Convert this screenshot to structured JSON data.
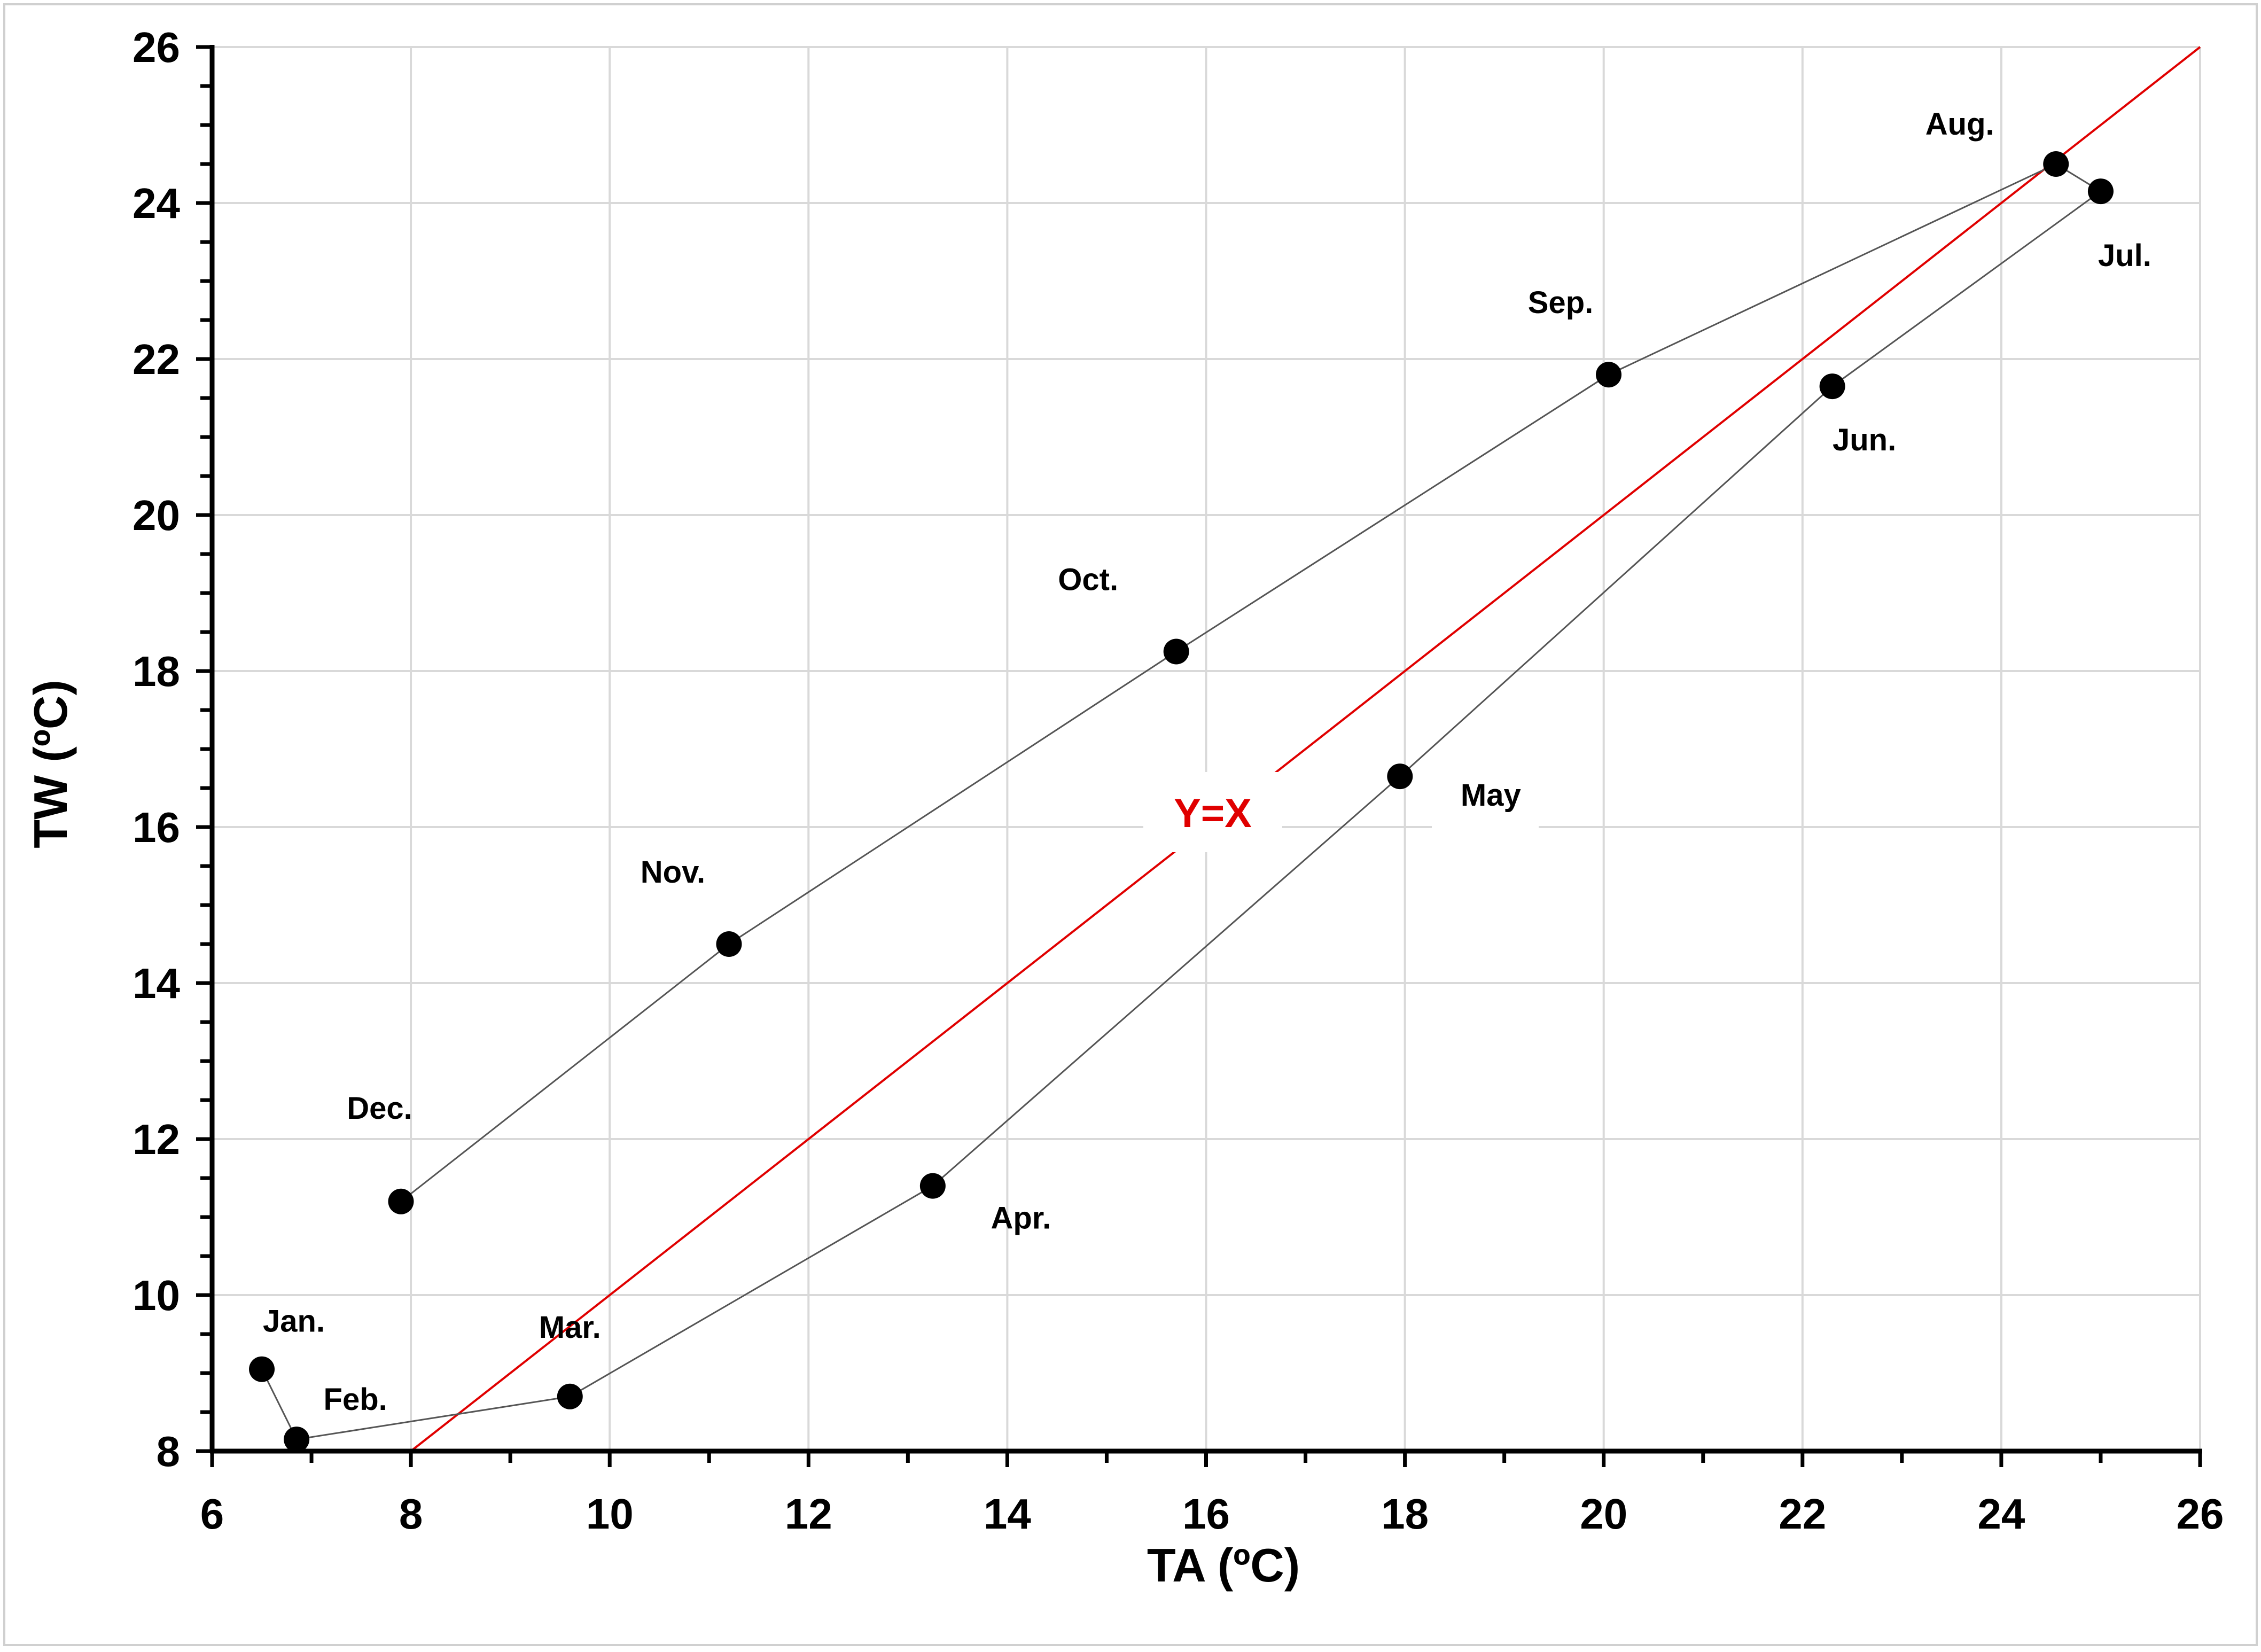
{
  "chart_data": {
    "type": "scatter",
    "xlabel": "TA (ºC)",
    "ylabel": "TW (ºC)",
    "xlim": [
      6,
      26
    ],
    "ylim": [
      8,
      26
    ],
    "x_ticks": [
      "6",
      "8",
      "10",
      "12",
      "14",
      "16",
      "18",
      "20",
      "22",
      "24",
      "26"
    ],
    "y_ticks": [
      "8",
      "10",
      "12",
      "14",
      "16",
      "18",
      "20",
      "22",
      "24",
      "26"
    ],
    "grid": true,
    "legend": "none",
    "series": [
      {
        "points": [
          {
            "label": "Jan.",
            "x": 6.5,
            "y": 9.05
          },
          {
            "label": "Feb.",
            "x": 6.85,
            "y": 8.15
          },
          {
            "label": "Mar.",
            "x": 9.6,
            "y": 8.7
          },
          {
            "label": "Apr.",
            "x": 13.25,
            "y": 11.4
          },
          {
            "label": "May",
            "x": 17.95,
            "y": 16.65
          },
          {
            "label": "Jun.",
            "x": 22.3,
            "y": 21.65
          },
          {
            "label": "Jul.",
            "x": 25.0,
            "y": 24.15
          },
          {
            "label": "Aug.",
            "x": 24.55,
            "y": 24.5
          },
          {
            "label": "Sep.",
            "x": 20.05,
            "y": 21.8
          },
          {
            "label": "Oct.",
            "x": 15.7,
            "y": 18.25
          },
          {
            "label": "Nov.",
            "x": 11.2,
            "y": 14.5
          },
          {
            "label": "Dec.",
            "x": 7.9,
            "y": 11.2
          }
        ],
        "color": "#000000",
        "line_color": "#555555"
      }
    ],
    "reference_line": {
      "label": "Y=X",
      "color": "#e00000",
      "from": [
        8,
        8
      ],
      "to": [
        26,
        26
      ]
    }
  }
}
